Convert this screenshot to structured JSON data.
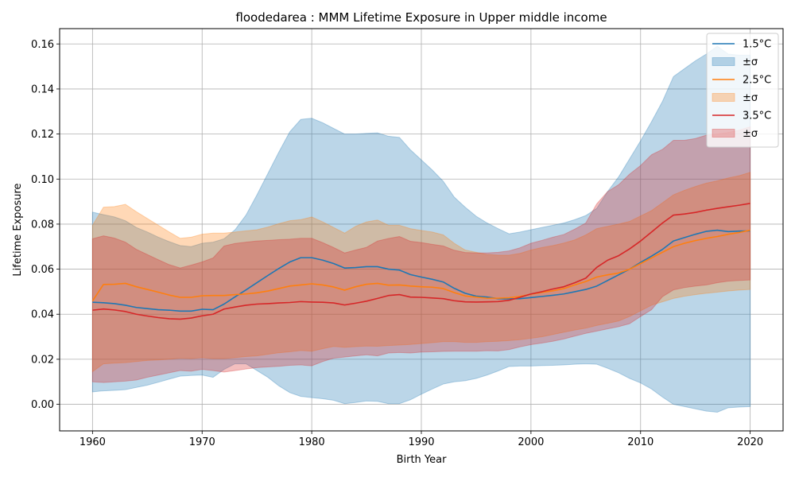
{
  "chart_data": {
    "type": "line",
    "title": "floodedarea : MMM Lifetime Exposure in Upper middle income",
    "xlabel": "Birth Year",
    "ylabel": "Lifetime Exposure",
    "xlim": [
      1957,
      2023
    ],
    "ylim": [
      -0.0118,
      0.1668
    ],
    "xticks": [
      1960,
      1970,
      1980,
      1990,
      2000,
      2010,
      2020
    ],
    "yticks": [
      0.0,
      0.02,
      0.04,
      0.06,
      0.08,
      0.1,
      0.12,
      0.14,
      0.16
    ],
    "ytick_labels": [
      "0.00",
      "0.02",
      "0.04",
      "0.06",
      "0.08",
      "0.10",
      "0.12",
      "0.14",
      "0.16"
    ],
    "grid": true,
    "legend_position": "top-right",
    "x": [
      1960,
      1961,
      1962,
      1963,
      1964,
      1965,
      1966,
      1967,
      1968,
      1969,
      1970,
      1971,
      1972,
      1973,
      1974,
      1975,
      1976,
      1977,
      1978,
      1979,
      1980,
      1981,
      1982,
      1983,
      1984,
      1985,
      1986,
      1987,
      1988,
      1989,
      1990,
      1991,
      1992,
      1993,
      1994,
      1995,
      1996,
      1997,
      1998,
      1999,
      2000,
      2001,
      2002,
      2003,
      2004,
      2005,
      2006,
      2007,
      2008,
      2009,
      2010,
      2011,
      2012,
      2013,
      2014,
      2015,
      2016,
      2017,
      2018,
      2019,
      2020
    ],
    "series": [
      {
        "name": "1.5°C",
        "band_label": "±σ",
        "color": "#1f77b4",
        "mean": [
          0.0453,
          0.0451,
          0.0447,
          0.044,
          0.043,
          0.0425,
          0.042,
          0.0418,
          0.0414,
          0.0414,
          0.0422,
          0.042,
          0.0445,
          0.0477,
          0.0508,
          0.054,
          0.0572,
          0.0603,
          0.0632,
          0.0651,
          0.0651,
          0.064,
          0.0625,
          0.0605,
          0.0607,
          0.0611,
          0.0611,
          0.06,
          0.0596,
          0.0576,
          0.0565,
          0.0555,
          0.0543,
          0.0515,
          0.0493,
          0.048,
          0.0476,
          0.0469,
          0.0468,
          0.0469,
          0.0474,
          0.0479,
          0.0484,
          0.049,
          0.05,
          0.051,
          0.0525,
          0.055,
          0.0575,
          0.06,
          0.063,
          0.0658,
          0.0688,
          0.0725,
          0.074,
          0.0755,
          0.0768,
          0.0773,
          0.0767,
          0.0769,
          0.077
        ],
        "lower": [
          0.0055,
          0.006,
          0.0062,
          0.0065,
          0.0075,
          0.0085,
          0.0098,
          0.0112,
          0.0125,
          0.0128,
          0.013,
          0.012,
          0.0155,
          0.018,
          0.018,
          0.015,
          0.012,
          0.0082,
          0.0052,
          0.0035,
          0.003,
          0.0025,
          0.0018,
          0.0003,
          0.0008,
          0.0015,
          0.0013,
          0.0003,
          0.0003,
          0.002,
          0.0045,
          0.0068,
          0.009,
          0.01,
          0.0105,
          0.0115,
          0.013,
          0.0148,
          0.0168,
          0.017,
          0.017,
          0.0172,
          0.0173,
          0.0175,
          0.0178,
          0.018,
          0.0178,
          0.016,
          0.014,
          0.0115,
          0.0095,
          0.0068,
          0.0032,
          0.0,
          -0.001,
          -0.002,
          -0.003,
          -0.0035,
          -0.0015,
          -0.0012,
          -0.001
        ],
        "upper": [
          0.0853,
          0.0842,
          0.0832,
          0.0815,
          0.0785,
          0.0765,
          0.0742,
          0.0722,
          0.0705,
          0.07,
          0.0715,
          0.072,
          0.0735,
          0.0775,
          0.084,
          0.093,
          0.1025,
          0.112,
          0.121,
          0.1265,
          0.127,
          0.125,
          0.1225,
          0.12,
          0.12,
          0.1203,
          0.1205,
          0.119,
          0.1185,
          0.113,
          0.1085,
          0.104,
          0.099,
          0.092,
          0.0875,
          0.0835,
          0.0805,
          0.078,
          0.0757,
          0.0765,
          0.0775,
          0.0785,
          0.0795,
          0.0805,
          0.082,
          0.0838,
          0.087,
          0.0945,
          0.101,
          0.109,
          0.117,
          0.1255,
          0.1345,
          0.1455,
          0.149,
          0.1525,
          0.1555,
          0.159,
          0.1555,
          0.155,
          0.155
        ]
      },
      {
        "name": "2.5°C",
        "band_label": "±σ",
        "color": "#ff7f0e",
        "mean": [
          0.0459,
          0.0532,
          0.0533,
          0.0537,
          0.0522,
          0.051,
          0.0498,
          0.0485,
          0.0475,
          0.0475,
          0.0482,
          0.0483,
          0.0483,
          0.0487,
          0.049,
          0.0495,
          0.0503,
          0.0514,
          0.0525,
          0.053,
          0.0535,
          0.053,
          0.0521,
          0.0507,
          0.0522,
          0.0533,
          0.0537,
          0.0529,
          0.053,
          0.0525,
          0.0522,
          0.052,
          0.0514,
          0.0496,
          0.0481,
          0.0476,
          0.0471,
          0.0471,
          0.0473,
          0.0479,
          0.0489,
          0.0497,
          0.0504,
          0.0514,
          0.053,
          0.0545,
          0.0565,
          0.0575,
          0.0583,
          0.06,
          0.0625,
          0.065,
          0.0675,
          0.07,
          0.0715,
          0.0727,
          0.0737,
          0.0745,
          0.0755,
          0.0763,
          0.0773
        ],
        "lower": [
          0.0145,
          0.018,
          0.0183,
          0.0185,
          0.019,
          0.0195,
          0.0197,
          0.02,
          0.0205,
          0.0203,
          0.0207,
          0.0203,
          0.0203,
          0.0207,
          0.0212,
          0.0215,
          0.0222,
          0.0229,
          0.0233,
          0.0239,
          0.0236,
          0.0247,
          0.0257,
          0.0253,
          0.0256,
          0.0259,
          0.0258,
          0.0261,
          0.0263,
          0.0266,
          0.027,
          0.0274,
          0.0278,
          0.0278,
          0.0275,
          0.0275,
          0.0278,
          0.028,
          0.0283,
          0.0287,
          0.0293,
          0.03,
          0.031,
          0.032,
          0.033,
          0.0338,
          0.035,
          0.036,
          0.037,
          0.039,
          0.0415,
          0.044,
          0.0455,
          0.047,
          0.048,
          0.0487,
          0.0493,
          0.0498,
          0.0503,
          0.0507,
          0.051
        ],
        "upper": [
          0.0795,
          0.0875,
          0.0878,
          0.0888,
          0.0855,
          0.0825,
          0.0795,
          0.0765,
          0.0737,
          0.0742,
          0.0755,
          0.076,
          0.076,
          0.0765,
          0.077,
          0.0775,
          0.0787,
          0.0802,
          0.0815,
          0.082,
          0.0832,
          0.081,
          0.0785,
          0.076,
          0.079,
          0.081,
          0.0818,
          0.0795,
          0.0795,
          0.078,
          0.0772,
          0.0765,
          0.0752,
          0.0715,
          0.0685,
          0.0675,
          0.0665,
          0.0662,
          0.0662,
          0.067,
          0.0685,
          0.0696,
          0.0705,
          0.0716,
          0.073,
          0.0752,
          0.078,
          0.079,
          0.08,
          0.0812,
          0.0836,
          0.086,
          0.0895,
          0.093,
          0.095,
          0.0967,
          0.0982,
          0.0992,
          0.1005,
          0.1015,
          0.103
        ]
      },
      {
        "name": "3.5°C",
        "band_label": "±σ",
        "color": "#d62728",
        "mean": [
          0.0418,
          0.0423,
          0.0419,
          0.0412,
          0.04,
          0.0392,
          0.0385,
          0.038,
          0.0378,
          0.0383,
          0.0393,
          0.04,
          0.0423,
          0.0432,
          0.044,
          0.0445,
          0.0447,
          0.045,
          0.0452,
          0.0456,
          0.0454,
          0.0453,
          0.045,
          0.0441,
          0.0449,
          0.0458,
          0.047,
          0.0483,
          0.0487,
          0.0476,
          0.0475,
          0.0472,
          0.0469,
          0.046,
          0.0455,
          0.0454,
          0.0455,
          0.0456,
          0.0462,
          0.0475,
          0.049,
          0.05,
          0.0512,
          0.0522,
          0.054,
          0.056,
          0.0608,
          0.064,
          0.066,
          0.069,
          0.0725,
          0.0765,
          0.0805,
          0.084,
          0.0845,
          0.0852,
          0.0862,
          0.087,
          0.0877,
          0.0884,
          0.0892
        ],
        "lower": [
          0.01,
          0.0097,
          0.01,
          0.0103,
          0.0108,
          0.012,
          0.013,
          0.014,
          0.015,
          0.0147,
          0.0155,
          0.015,
          0.0143,
          0.015,
          0.0157,
          0.0163,
          0.0166,
          0.0169,
          0.0173,
          0.0175,
          0.0171,
          0.019,
          0.0205,
          0.021,
          0.0215,
          0.022,
          0.0215,
          0.0228,
          0.023,
          0.0228,
          0.0232,
          0.0233,
          0.0235,
          0.0236,
          0.0236,
          0.0236,
          0.0238,
          0.0237,
          0.0243,
          0.0255,
          0.0265,
          0.0272,
          0.028,
          0.029,
          0.0303,
          0.0315,
          0.0325,
          0.0335,
          0.0345,
          0.0358,
          0.039,
          0.042,
          0.0478,
          0.0508,
          0.0518,
          0.0525,
          0.053,
          0.054,
          0.0547,
          0.055,
          0.0552
        ],
        "upper": [
          0.0735,
          0.0748,
          0.0738,
          0.072,
          0.0688,
          0.0665,
          0.0642,
          0.062,
          0.0605,
          0.0618,
          0.0632,
          0.065,
          0.0703,
          0.0714,
          0.072,
          0.0725,
          0.0728,
          0.0731,
          0.0733,
          0.0737,
          0.0737,
          0.0718,
          0.0696,
          0.0672,
          0.0685,
          0.0697,
          0.0725,
          0.0736,
          0.0745,
          0.0724,
          0.0718,
          0.071,
          0.0703,
          0.0684,
          0.0674,
          0.0672,
          0.0672,
          0.0675,
          0.0681,
          0.0695,
          0.0715,
          0.0728,
          0.0742,
          0.0754,
          0.0778,
          0.0805,
          0.089,
          0.0945,
          0.0975,
          0.1022,
          0.106,
          0.1108,
          0.1132,
          0.1172,
          0.1172,
          0.118,
          0.1195,
          0.12,
          0.1207,
          0.1217,
          0.1232
        ]
      }
    ]
  }
}
